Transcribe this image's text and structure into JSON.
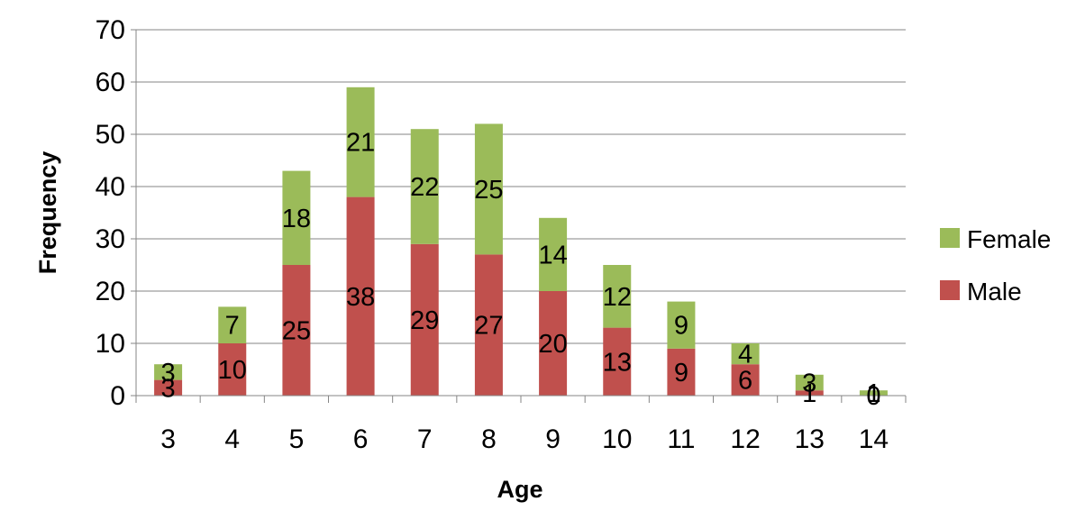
{
  "chart_data": {
    "type": "bar",
    "stacked": true,
    "categories": [
      "3",
      "4",
      "5",
      "6",
      "7",
      "8",
      "9",
      "10",
      "11",
      "12",
      "13",
      "14"
    ],
    "series": [
      {
        "name": "Male",
        "color": "#c0504d",
        "values": [
          3,
          10,
          25,
          38,
          29,
          27,
          20,
          13,
          9,
          6,
          1,
          0
        ]
      },
      {
        "name": "Female",
        "color": "#9bbb59",
        "values": [
          3,
          7,
          18,
          21,
          22,
          25,
          14,
          12,
          9,
          4,
          3,
          1
        ]
      }
    ],
    "xlabel": "Age",
    "ylabel": "Frequency",
    "ylim": [
      0,
      70
    ],
    "yticks": [
      "0",
      "10",
      "20",
      "30",
      "40",
      "50",
      "60",
      "70"
    ],
    "grid": true,
    "legend": "right",
    "legend_order": [
      "Female",
      "Male"
    ],
    "data_labels": true
  }
}
